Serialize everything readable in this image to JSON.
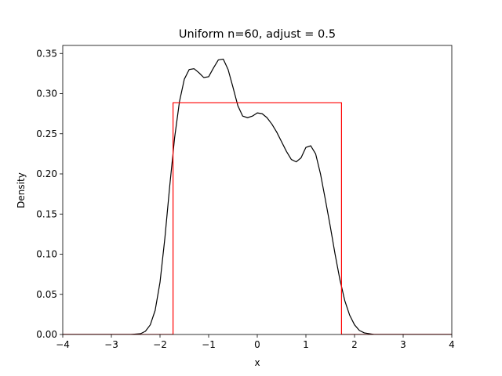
{
  "chart_data": {
    "type": "line",
    "title": "Uniform n=60, adjust = 0.5",
    "xlabel": "x",
    "ylabel": "Density",
    "xlim": [
      -4,
      4
    ],
    "ylim": [
      0,
      0.36
    ],
    "grid": false,
    "x_ticks": [
      -4,
      -3,
      -2,
      -1,
      0,
      1,
      2,
      3,
      4
    ],
    "x_tick_labels": [
      "−4",
      "−3",
      "−2",
      "−1",
      "0",
      "1",
      "2",
      "3",
      "4"
    ],
    "y_ticks": [
      0,
      0.05,
      0.1,
      0.15,
      0.2,
      0.25,
      0.3,
      0.35
    ],
    "y_tick_labels": [
      "0.00",
      "0.05",
      "0.10",
      "0.15",
      "0.20",
      "0.25",
      "0.30",
      "0.35"
    ],
    "series": [
      {
        "color": "#000000",
        "x": [
          -4.0,
          -2.6,
          -2.4,
          -2.3,
          -2.2,
          -2.1,
          -2.0,
          -1.9,
          -1.8,
          -1.7,
          -1.6,
          -1.5,
          -1.4,
          -1.3,
          -1.2,
          -1.1,
          -1.0,
          -0.9,
          -0.8,
          -0.7,
          -0.6,
          -0.5,
          -0.4,
          -0.3,
          -0.2,
          -0.1,
          0.0,
          0.1,
          0.2,
          0.3,
          0.4,
          0.5,
          0.6,
          0.7,
          0.8,
          0.9,
          1.0,
          1.1,
          1.2,
          1.3,
          1.4,
          1.5,
          1.6,
          1.7,
          1.8,
          1.9,
          2.0,
          2.1,
          2.2,
          2.3,
          2.4,
          2.5,
          4.0
        ],
        "y": [
          0.0,
          0.0,
          0.001,
          0.004,
          0.012,
          0.03,
          0.065,
          0.12,
          0.185,
          0.245,
          0.29,
          0.318,
          0.33,
          0.331,
          0.326,
          0.32,
          0.321,
          0.332,
          0.342,
          0.343,
          0.33,
          0.308,
          0.285,
          0.272,
          0.27,
          0.272,
          0.276,
          0.275,
          0.27,
          0.262,
          0.252,
          0.24,
          0.228,
          0.218,
          0.215,
          0.22,
          0.233,
          0.235,
          0.225,
          0.2,
          0.168,
          0.135,
          0.1,
          0.068,
          0.042,
          0.024,
          0.012,
          0.005,
          0.002,
          0.001,
          0.0,
          0.0,
          0.0
        ]
      },
      {
        "color": "#ff0000",
        "x": [
          -4.0,
          -1.7321,
          -1.7321,
          1.7321,
          1.7321,
          4.0
        ],
        "y": [
          0.0,
          0.0,
          0.2887,
          0.2887,
          0.0,
          0.0
        ]
      }
    ]
  }
}
